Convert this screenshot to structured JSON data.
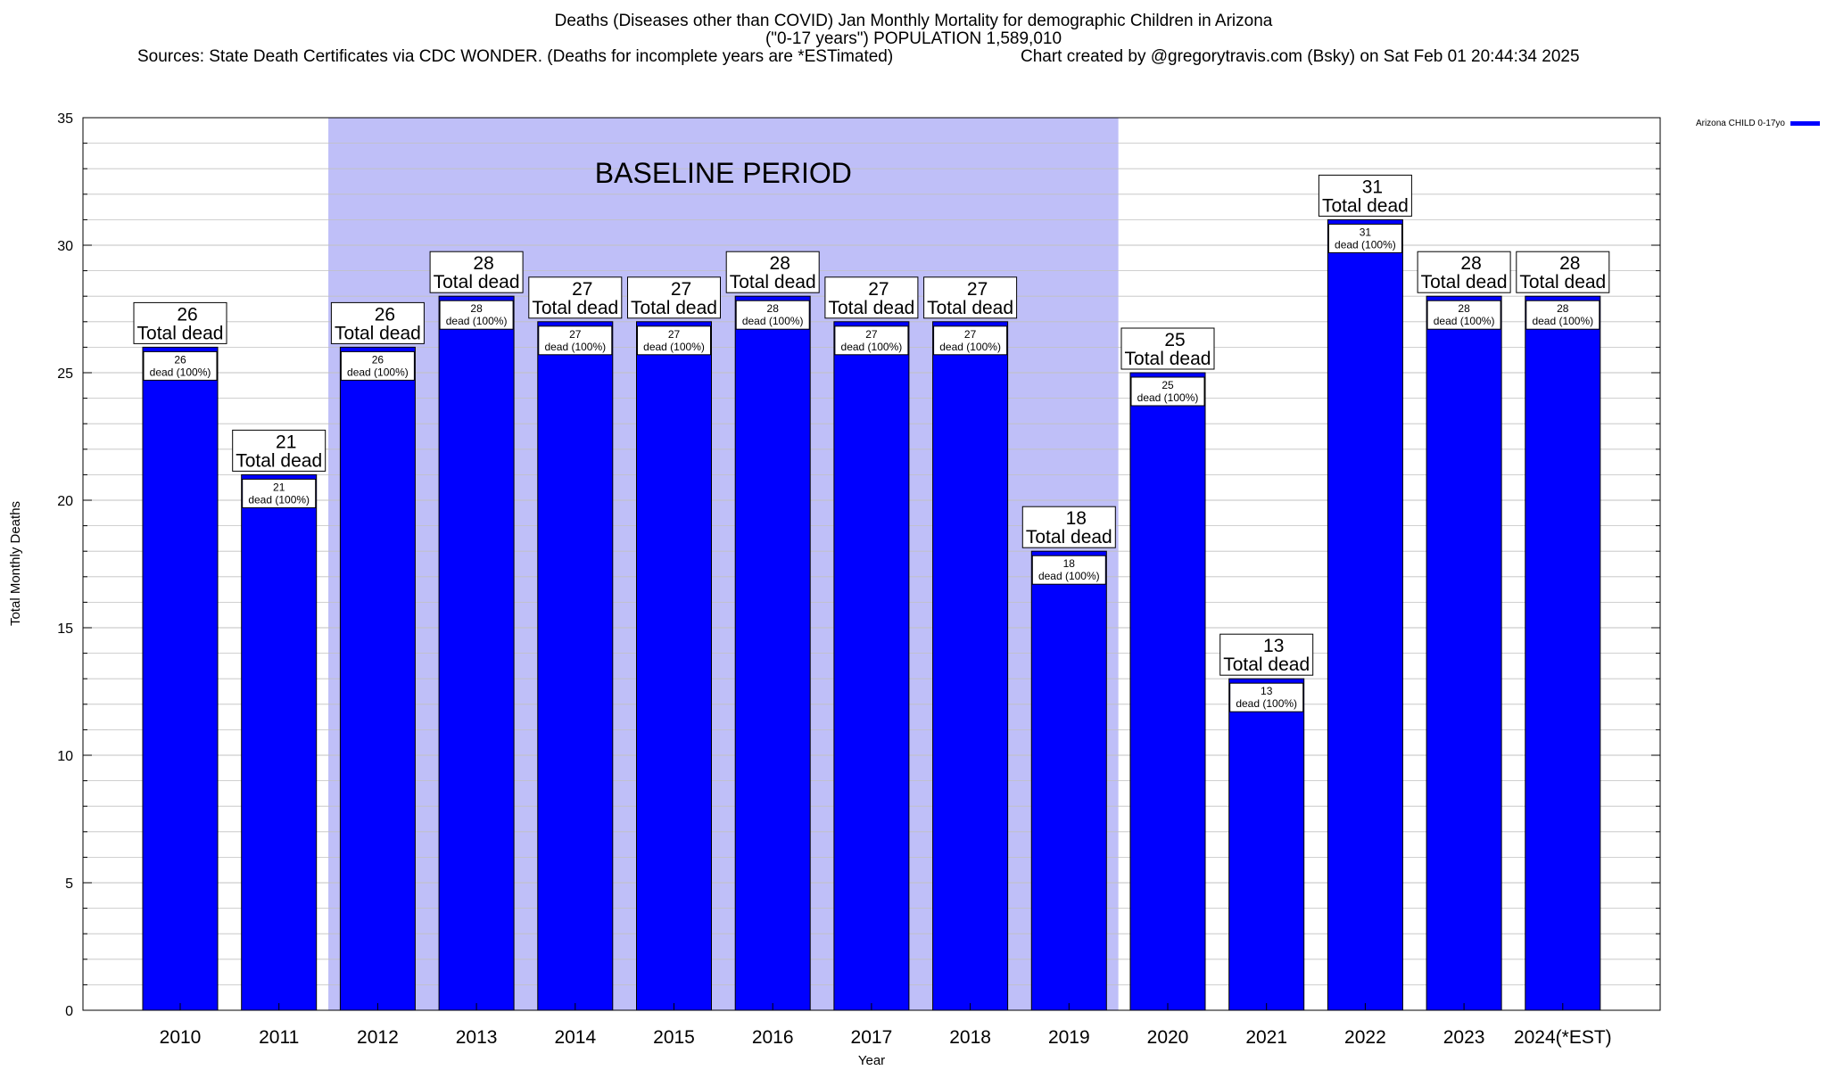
{
  "header": {
    "line1": "Deaths (Diseases other than COVID) Jan Monthly Mortality for demographic Children in Arizona",
    "line2": "(\"0-17 years\") POPULATION 1,589,010",
    "line3": "Sources: State Death Certificates via CDC WONDER. (Deaths for incomplete years are *ESTimated)",
    "line4": "Chart created by @gregorytravis.com (Bsky) on Sat Feb 01 20:44:34 2025"
  },
  "colors": {
    "bar": "#0000ff",
    "baseline_band": "#bfbff8",
    "grid": "#c0c0c0"
  },
  "chart_data": {
    "type": "bar",
    "categories": [
      "2010",
      "2011",
      "2012",
      "2013",
      "2014",
      "2015",
      "2016",
      "2017",
      "2018",
      "2019",
      "2020",
      "2021",
      "2022",
      "2023",
      "2024(*EST)"
    ],
    "series": [
      {
        "name": "Arizona CHILD 0-17yo",
        "values": [
          26,
          21,
          26,
          28,
          27,
          27,
          28,
          27,
          27,
          18,
          25,
          13,
          31,
          28,
          28
        ]
      }
    ],
    "top_label_suffix": "Total dead",
    "inner_label_suffix": "dead (100%)",
    "xlabel": "Year",
    "ylabel": "Total Monthly Deaths",
    "ylim": [
      0,
      35
    ],
    "yticks": [
      0,
      5,
      10,
      15,
      20,
      25,
      30,
      35
    ],
    "grid": true,
    "legend_position": "top-right",
    "annotation": {
      "text": "BASELINE PERIOD",
      "from_category": "2012",
      "to_category": "2019"
    }
  }
}
